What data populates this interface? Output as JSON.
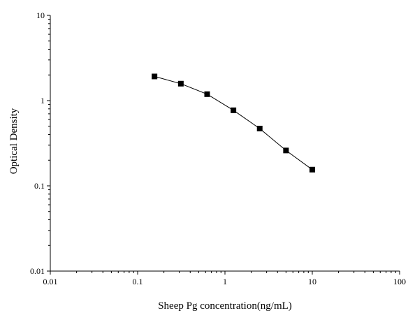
{
  "chart_data": {
    "type": "line",
    "x_scale": "log",
    "y_scale": "log",
    "xlim": [
      0.01,
      100
    ],
    "ylim": [
      0.01,
      10
    ],
    "x_ticks": [
      "0.01",
      "0.1",
      "1",
      "10",
      "100"
    ],
    "y_ticks": [
      "0.01",
      "0.1",
      "1",
      "10"
    ],
    "xlabel": "Sheep Pg concentration(ng/mL)",
    "ylabel": "Optical Density",
    "grid": false,
    "marker": "square",
    "line_color": "#000000",
    "series": [
      {
        "x": [
          0.156,
          0.3125,
          0.625,
          1.25,
          2.5,
          5,
          10
        ],
        "y": [
          1.92,
          1.58,
          1.19,
          0.77,
          0.47,
          0.26,
          0.155
        ]
      }
    ]
  }
}
